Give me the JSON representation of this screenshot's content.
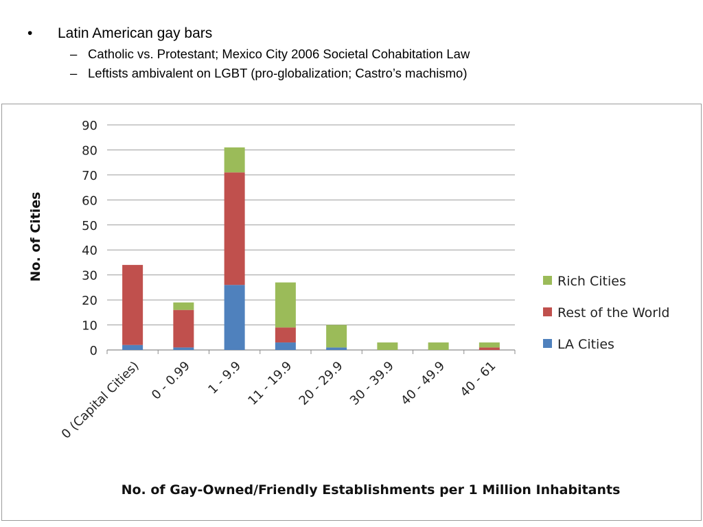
{
  "slide": {
    "bullet": "Latin American gay bars",
    "bullet_marker": "•",
    "subbullets": [
      "Catholic vs. Protestant; Mexico City 2006 Societal Cohabitation Law",
      "Leftists ambivalent on LGBT (pro-globalization; Castro’s machismo)"
    ],
    "subbullet_marker": "–"
  },
  "chart_data": {
    "type": "bar",
    "stacked": true,
    "title": "",
    "xlabel": "No. of Gay-Owned/Friendly Establishments per 1 Million Inhabitants",
    "ylabel": "No. of Cities",
    "ylim": [
      0,
      90
    ],
    "yticks": [
      0,
      10,
      20,
      30,
      40,
      50,
      60,
      70,
      80,
      90
    ],
    "grid": true,
    "legend": "right",
    "categories": [
      "0 (Capital Cities)",
      "0 - 0.99",
      "1 - 9.9",
      "11 - 19.9",
      "20 - 29.9",
      "30 - 39.9",
      "40 - 49.9",
      "40 - 61"
    ],
    "series": [
      {
        "name": "LA Cities",
        "color": "#4f81bd",
        "values": [
          2,
          1,
          26,
          3,
          1,
          0,
          0,
          0
        ]
      },
      {
        "name": "Rest of the World",
        "color": "#c0504d",
        "values": [
          32,
          15,
          45,
          6,
          0,
          0,
          0,
          1
        ]
      },
      {
        "name": "Rich Cities",
        "color": "#9bbb59",
        "values": [
          0,
          3,
          10,
          18,
          9,
          3,
          3,
          2
        ]
      }
    ],
    "legend_order": [
      "Rich Cities",
      "Rest of the World",
      "LA Cities"
    ]
  }
}
